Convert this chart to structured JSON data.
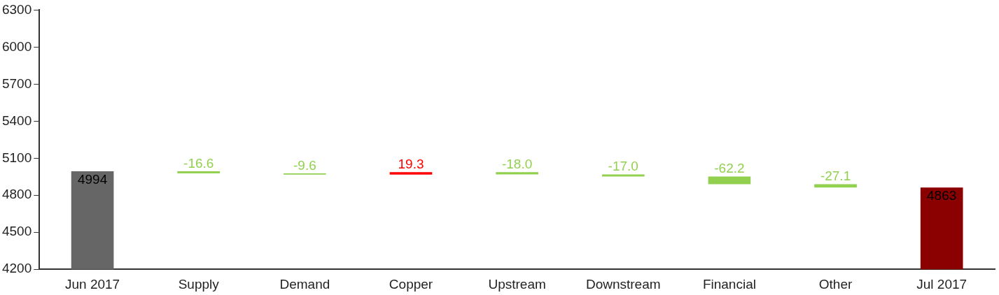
{
  "chart_data": {
    "type": "bar",
    "categories": [
      "Jun 2017",
      "Supply",
      "Demand",
      "Copper",
      "Upstream",
      "Downstream",
      "Financial",
      "Other",
      "Jul 2017"
    ],
    "values": [
      4994,
      -16.6,
      -9.6,
      19.3,
      -18.0,
      -17.0,
      -62.2,
      -27.1,
      4863
    ],
    "base": [
      null,
      4994,
      4977.4,
      4967.8,
      4987.1,
      4969.1,
      4952.1,
      4889.9,
      null
    ],
    "colors": [
      "#666666",
      "#92d050",
      "#92d050",
      "#ff0000",
      "#92d050",
      "#92d050",
      "#92d050",
      "#92d050",
      "#8b0000"
    ],
    "value_labels": [
      "4994",
      "-16.6",
      "-9.6",
      "19.3",
      "-18.0",
      "-17.0",
      "-62.2",
      "-27.1",
      "4863"
    ],
    "ylim": [
      4200,
      6300
    ],
    "yticks": [
      4200,
      4500,
      4800,
      5100,
      5400,
      5700,
      6000,
      6300
    ],
    "grid": false,
    "legend": false
  }
}
